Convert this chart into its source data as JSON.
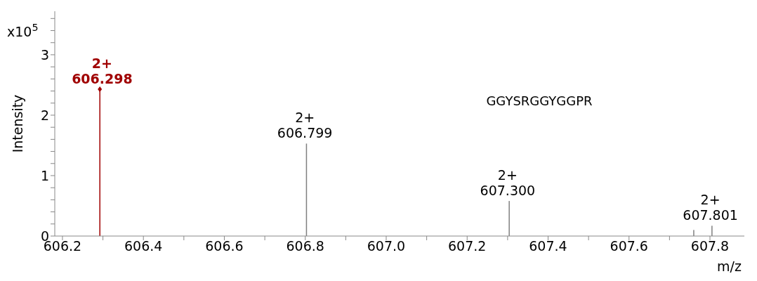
{
  "chart_data": {
    "type": "bar",
    "xlabel": "m/z",
    "ylabel": "Intensity",
    "annotations": [
      "x10$^{5}$",
      "GGYSRGGYGGPR",
      {
        "text": "2+\n606.298",
        "x": 606.298,
        "y": 2.43
      },
      {
        "text": "2+\n606.799",
        "x": 606.799,
        "y": 1.53
      },
      {
        "text": "2+\n607.300",
        "x": 607.3,
        "y": 0.58
      },
      {
        "text": "2+\n607.801",
        "x": 607.801,
        "y": 0.17
      }
    ],
    "series": [
      {
        "type": "lollipop",
        "color": "#a00000",
        "marker": "diamond",
        "x": [
          606.298
        ],
        "values": [
          2.43
        ]
      },
      {
        "color": "#808080",
        "x": [
          606.799,
          607.3,
          607.756,
          607.801
        ],
        "values": [
          1.53,
          0.58,
          0.1,
          0.17
        ]
      }
    ],
    "xlim": [
      606.181,
      607.885
    ],
    "xticks": [
      606.2,
      {
        "value": 606.3,
        "label": null
      },
      606.4,
      {
        "value": 606.5,
        "label": null
      },
      606.6,
      {
        "value": 606.7,
        "label": null
      },
      606.8,
      {
        "value": 606.9,
        "label": null
      },
      {
        "value": 607.0,
        "label": "607.0"
      },
      {
        "value": 607.1,
        "label": null
      },
      607.2,
      {
        "value": 607.3,
        "label": null
      },
      607.4,
      {
        "value": 607.5,
        "label": null
      },
      607.6,
      {
        "value": 607.7,
        "label": null
      },
      607.8
    ],
    "ylim": [
      0,
      3.72
    ],
    "yticks": [
      0,
      {
        "value": 0.2,
        "label": null
      },
      {
        "value": 0.4,
        "label": null
      },
      {
        "value": 0.6,
        "label": null
      },
      {
        "value": 0.8,
        "label": null
      },
      1,
      {
        "value": 1.2,
        "label": null
      },
      {
        "value": 1.4,
        "label": null
      },
      {
        "value": 1.6,
        "label": null
      },
      {
        "value": 1.8,
        "label": null
      },
      2,
      {
        "value": 2.2,
        "label": null
      },
      {
        "value": 2.4,
        "label": null
      },
      {
        "value": 2.6,
        "label": null
      },
      {
        "value": 2.8,
        "label": null
      },
      3,
      {
        "value": 3.2,
        "label": null
      },
      {
        "value": 3.4,
        "label": null
      },
      {
        "value": 3.6,
        "label": null
      }
    ],
    "grid": false,
    "legend": false
  }
}
